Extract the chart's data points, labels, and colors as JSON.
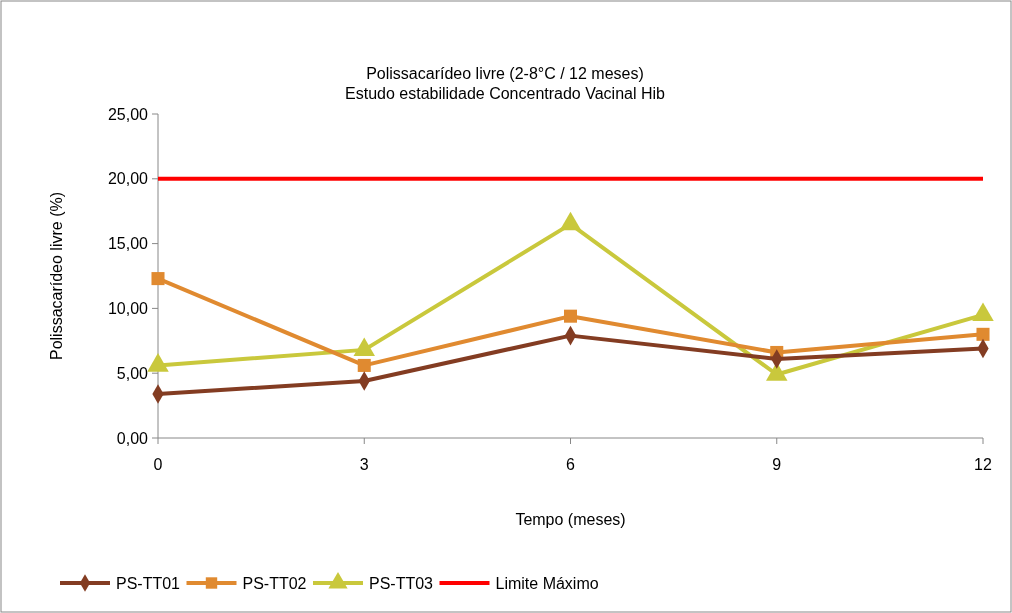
{
  "chart_data": {
    "type": "line",
    "title": "Polissacarídeo livre (2-8°C / 12 meses)",
    "subtitle": "Estudo estabilidade Concentrado Vacinal Hib",
    "xlabel": "Tempo (meses)",
    "ylabel": "Polissacarídeo livre (%)",
    "x": [
      0,
      3,
      6,
      9,
      12
    ],
    "xlim": [
      0,
      12
    ],
    "xticks": [
      0,
      3,
      6,
      9,
      12
    ],
    "ylim": [
      0,
      25
    ],
    "yticks": [
      {
        "value": 0,
        "label": "0,00"
      },
      {
        "value": 5,
        "label": "5,00"
      },
      {
        "value": 10,
        "label": "10,00"
      },
      {
        "value": 15,
        "label": "15,00"
      },
      {
        "value": 20,
        "label": "20,00"
      },
      {
        "value": 25,
        "label": "25,00"
      }
    ],
    "series": [
      {
        "name": "PS-TT01",
        "color": "#833c22",
        "marker": "diamond",
        "values": [
          3.4,
          4.4,
          7.9,
          6.1,
          6.9
        ]
      },
      {
        "name": "PS-TT02",
        "color": "#e08a30",
        "marker": "square",
        "values": [
          12.3,
          5.6,
          9.4,
          6.6,
          8.0
        ]
      },
      {
        "name": "PS-TT03",
        "color": "#c9c83c",
        "marker": "triangle",
        "values": [
          5.6,
          6.8,
          16.5,
          4.9,
          9.5
        ]
      },
      {
        "name": "Limite Máximo",
        "color": "#ff0000",
        "marker": "none",
        "values": [
          20,
          20,
          20,
          20,
          20
        ]
      }
    ],
    "grid": false,
    "legend": "bottom"
  }
}
